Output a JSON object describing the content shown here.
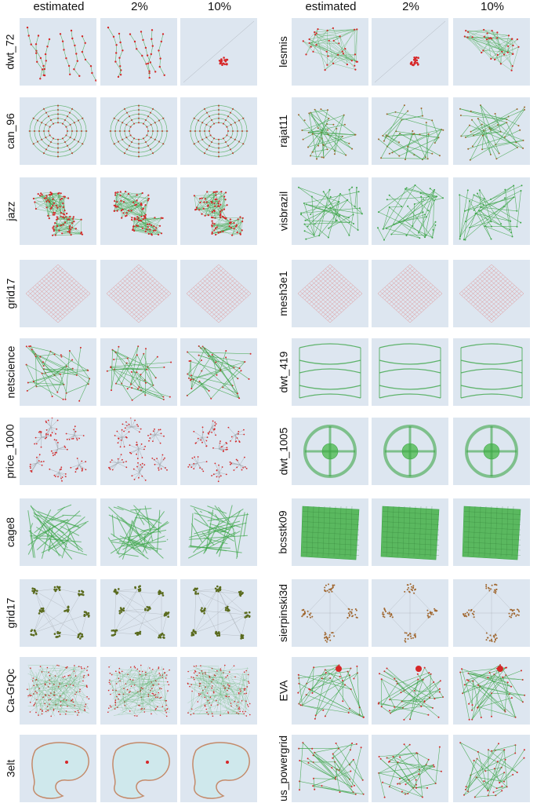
{
  "columns": [
    "estimated",
    "2%",
    "10%"
  ],
  "left_rows": [
    "dwt_72",
    "can_96",
    "jazz",
    "grid17",
    "netscience",
    "price_1000",
    "cage8",
    "grid17",
    "Ca-GrQc",
    "3elt"
  ],
  "right_rows": [
    "lesmis",
    "rajat11",
    "visbrazil",
    "mesh3e1",
    "dwt_419",
    "dwt_1005",
    "bcsstk09",
    "sierpinski3d",
    "EVA",
    "us_powergrid"
  ],
  "colors": {
    "panel_bg": "#dde6f0",
    "edge_green": "#3fa64a",
    "node_red": "#d62728",
    "edge_grey": "#9aa0a6",
    "node_olive": "#5a6b1e",
    "node_brown": "#a0662e",
    "mesh_pink": "#e08a8a"
  }
}
